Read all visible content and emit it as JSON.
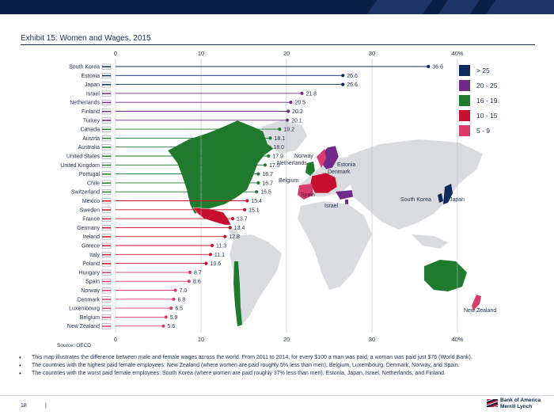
{
  "header": {
    "title": "Exhibit 15: Women and Wages, 2015"
  },
  "chart_data": {
    "type": "bar",
    "x_ticks": [
      0,
      10,
      20,
      30,
      40
    ],
    "x_unit": "%",
    "xlim": [
      0,
      40
    ],
    "categories": [
      "South Korea",
      "Estonia",
      "Japan",
      "Israel",
      "Netherlands",
      "Finland",
      "Turkey",
      "Canada",
      "Austria",
      "Australia",
      "United States",
      "United Kingdom",
      "Portugal",
      "Chile",
      "Switzerland",
      "Mexico",
      "Sweden",
      "France",
      "Germany",
      "Ireland",
      "Greece",
      "Italy",
      "Poland",
      "Hungary",
      "Spain",
      "Norway",
      "Denmark",
      "Luxembourg",
      "Belgium",
      "New Zealand"
    ],
    "values": [
      36.6,
      26.6,
      26.6,
      21.8,
      20.5,
      20.2,
      20.1,
      19.2,
      18.1,
      18.0,
      17.9,
      17.5,
      16.7,
      16.7,
      16.5,
      15.4,
      15.1,
      13.7,
      13.4,
      12.8,
      11.3,
      11.1,
      10.6,
      8.7,
      8.6,
      7.0,
      6.8,
      6.5,
      5.9,
      5.6
    ],
    "source": "Source: OECD",
    "legend_position": "top-right",
    "legend": [
      {
        "label": "> 25",
        "color": "#0d2a5c"
      },
      {
        "label": "20 - 25",
        "color": "#6f2a8a"
      },
      {
        "label": "16 - 19",
        "color": "#1f7a2e"
      },
      {
        "label": "10 - 15",
        "color": "#c8102e"
      },
      {
        "label": "5 - 9",
        "color": "#d93b6a"
      }
    ]
  },
  "map_labels": [
    "Norway",
    "Netherlands",
    "Estonia",
    "Denmark",
    "Belgium",
    "Spain",
    "Israel",
    "South Korea",
    "Japan",
    "New Zealand"
  ],
  "notes": [
    "This map illustrates the difference between male and female wages across the world. From 2011 to 2014, for every $100 a man was paid, a woman was paid just $76 (World Bank).",
    "The countries with the highest paid female employees: New Zealand (where women are paid roughly 5% less than men), Belgium, Luxembourg, Denmark, Norway, and Spain.",
    "The countries with the worst paid female employees: South Korea (where women are paid roughly 37% less than men), Estonia, Japan, Israel, Netherlands, and Finland."
  ],
  "footer": {
    "page": "18",
    "separator": "|",
    "logo_line1": "Bank of America",
    "logo_line2": "Merrill Lynch"
  }
}
